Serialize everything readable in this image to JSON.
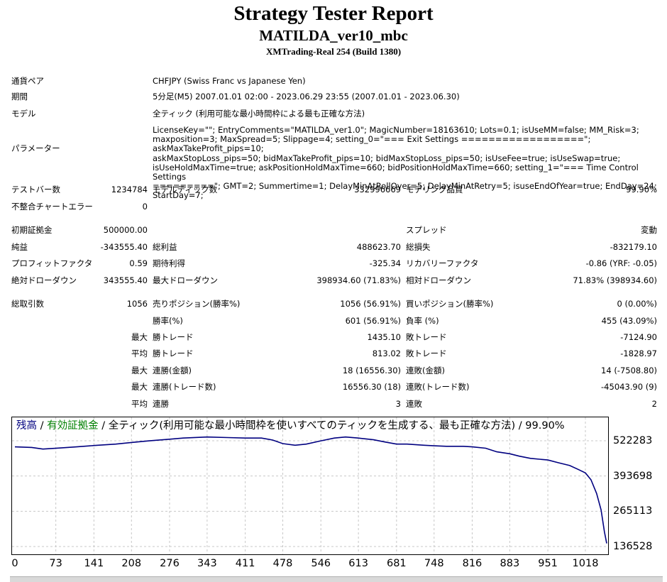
{
  "header": {
    "title": "Strategy Tester Report",
    "subtitle": "MATILDA_ver10_mbc",
    "server": "XMTrading-Real 254 (Build 1380)"
  },
  "info": {
    "symbol_label": "通貨ペア",
    "symbol_value": "CHFJPY (Swiss Franc vs Japanese Yen)",
    "period_label": "期間",
    "period_value": "5分足(M5) 2007.01.01 02:00 - 2023.06.29 23:55 (2007.01.01 - 2023.06.30)",
    "model_label": "モデル",
    "model_value": "全ティック (利用可能な最小時間枠による最も正確な方法)",
    "params_label": "パラメーター",
    "params_value": "LicenseKey=\"\"; EntryComments=\"MATILDA_ver1.0\"; MagicNumber=18163610; Lots=0.1; isUseMM=false; MM_Risk=3;\nmaxposition=3; MaxSpread=5; Slippage=4; setting_0=\"=== Exit Settings ==================\"; askMaxTakeProfit_pips=10;\naskMaxStopLoss_pips=50; bidMaxTakeProfit_pips=10; bidMaxStopLoss_pips=50; isUseFee=true; isUseSwap=true;\nisUseHoldMaxTime=true; askPositionHoldMaxTime=660; bidPositionHoldMaxTime=660; setting_1=\"=== Time Control Settings\n=========\"; GMT=2; Summertime=1; DelayMinAtRollOver=5; DelayMinAtRetry=5; isuseEndOfYear=true; EndDay=24; StartDay=7;"
  },
  "stats": {
    "bars_label": "テストバー数",
    "bars_value": "1234784",
    "ticks_label": "モデルティック数",
    "ticks_value": "332996669",
    "quality_label": "モデリング品質",
    "quality_value": "99.90%",
    "mismatch_label": "不整合チャートエラー",
    "mismatch_value": "0",
    "deposit_label": "初期証拠金",
    "deposit_value": "500000.00",
    "spread_label": "スプレッド",
    "spread_value": "変動",
    "net_label": "純益",
    "net_value": "-343555.40",
    "gross_profit_label": "総利益",
    "gross_profit_value": "488623.70",
    "gross_loss_label": "総損失",
    "gross_loss_value": "-832179.10",
    "pf_label": "プロフィットファクタ",
    "pf_value": "0.59",
    "expected_label": "期待利得",
    "expected_value": "-325.34",
    "recovery_label": "リカバリーファクタ",
    "recovery_value": "-0.86 (YRF: -0.05)",
    "abs_dd_label": "絶対ドローダウン",
    "abs_dd_value": "343555.40",
    "max_dd_label": "最大ドローダウン",
    "max_dd_value": "398934.60 (71.83%)",
    "rel_dd_label": "相対ドローダウン",
    "rel_dd_value": "71.83% (398934.60)",
    "trades_label": "総取引数",
    "trades_value": "1056",
    "short_label": "売りポジション(勝率%)",
    "short_value": "1056 (56.91%)",
    "long_label": "買いポジション(勝率%)",
    "long_value": "0 (0.00%)",
    "win_label": "勝率(%)",
    "win_value": "601 (56.91%)",
    "loss_label": "負率 (%)",
    "loss_value": "455 (43.09%)",
    "max_word": "最大",
    "avg_word": "平均",
    "largest_win_label": "勝トレード",
    "largest_win_value": "1435.10",
    "largest_loss_label": "敗トレード",
    "largest_loss_value": "-7124.90",
    "avg_win_label": "勝トレード",
    "avg_win_value": "813.02",
    "avg_loss_label": "敗トレード",
    "avg_loss_value": "-1828.97",
    "max_cons_wins_label": "連勝(金額)",
    "max_cons_wins_value": "18 (16556.30)",
    "max_cons_losses_label": "連敗(金額)",
    "max_cons_losses_value": "14 (-7508.80)",
    "max_cons_profit_label": "連勝(トレード数)",
    "max_cons_profit_value": "16556.30 (18)",
    "max_cons_loss_label": "連敗(トレード数)",
    "max_cons_loss_value": "-45043.90 (9)",
    "avg_cons_wins_label": "連勝",
    "avg_cons_wins_value": "3",
    "avg_cons_losses_label": "連敗",
    "avg_cons_losses_value": "2"
  },
  "chart_legend": {
    "balance": "残高",
    "sep1": " / ",
    "equity": "有効証拠金",
    "sep2": " / ",
    "rest": "全ティック(利用可能な最小時間枠を使いすべてのティックを生成する、最も正確な方法) / 99.90%"
  },
  "colors": {
    "balance_line": "#000080",
    "equity_legend": "#008000",
    "grid": "#c8c8c8"
  },
  "chart_data": {
    "type": "line",
    "title": "",
    "xlabel": "",
    "ylabel": "",
    "x_ticks": [
      0,
      73,
      141,
      208,
      276,
      343,
      411,
      478,
      546,
      613,
      681,
      748,
      816,
      883,
      951,
      1018
    ],
    "y_ticks": [
      522283,
      393698,
      265113,
      136528
    ],
    "xlim": [
      0,
      1056
    ],
    "ylim": [
      136528,
      522283
    ],
    "grid": true,
    "series": [
      {
        "name": "残高",
        "x": [
          0,
          30,
          50,
          80,
          110,
          141,
          180,
          208,
          240,
          276,
          300,
          343,
          380,
          411,
          440,
          460,
          478,
          500,
          520,
          546,
          570,
          590,
          613,
          640,
          660,
          681,
          700,
          730,
          748,
          770,
          800,
          816,
          840,
          860,
          883,
          900,
          920,
          951,
          970,
          990,
          1005,
          1018,
          1028,
          1038,
          1046,
          1052,
          1056
        ],
        "y": [
          500000,
          498000,
          492000,
          496000,
          500000,
          505000,
          510000,
          516000,
          522000,
          528000,
          532000,
          536000,
          534000,
          532000,
          532000,
          525000,
          512000,
          506000,
          510000,
          522000,
          532000,
          536000,
          532000,
          526000,
          518000,
          510000,
          510000,
          506000,
          504000,
          502000,
          502000,
          500000,
          495000,
          482000,
          475000,
          466000,
          458000,
          452000,
          442000,
          432000,
          418000,
          405000,
          380000,
          330000,
          270000,
          190000,
          148000
        ]
      }
    ]
  }
}
